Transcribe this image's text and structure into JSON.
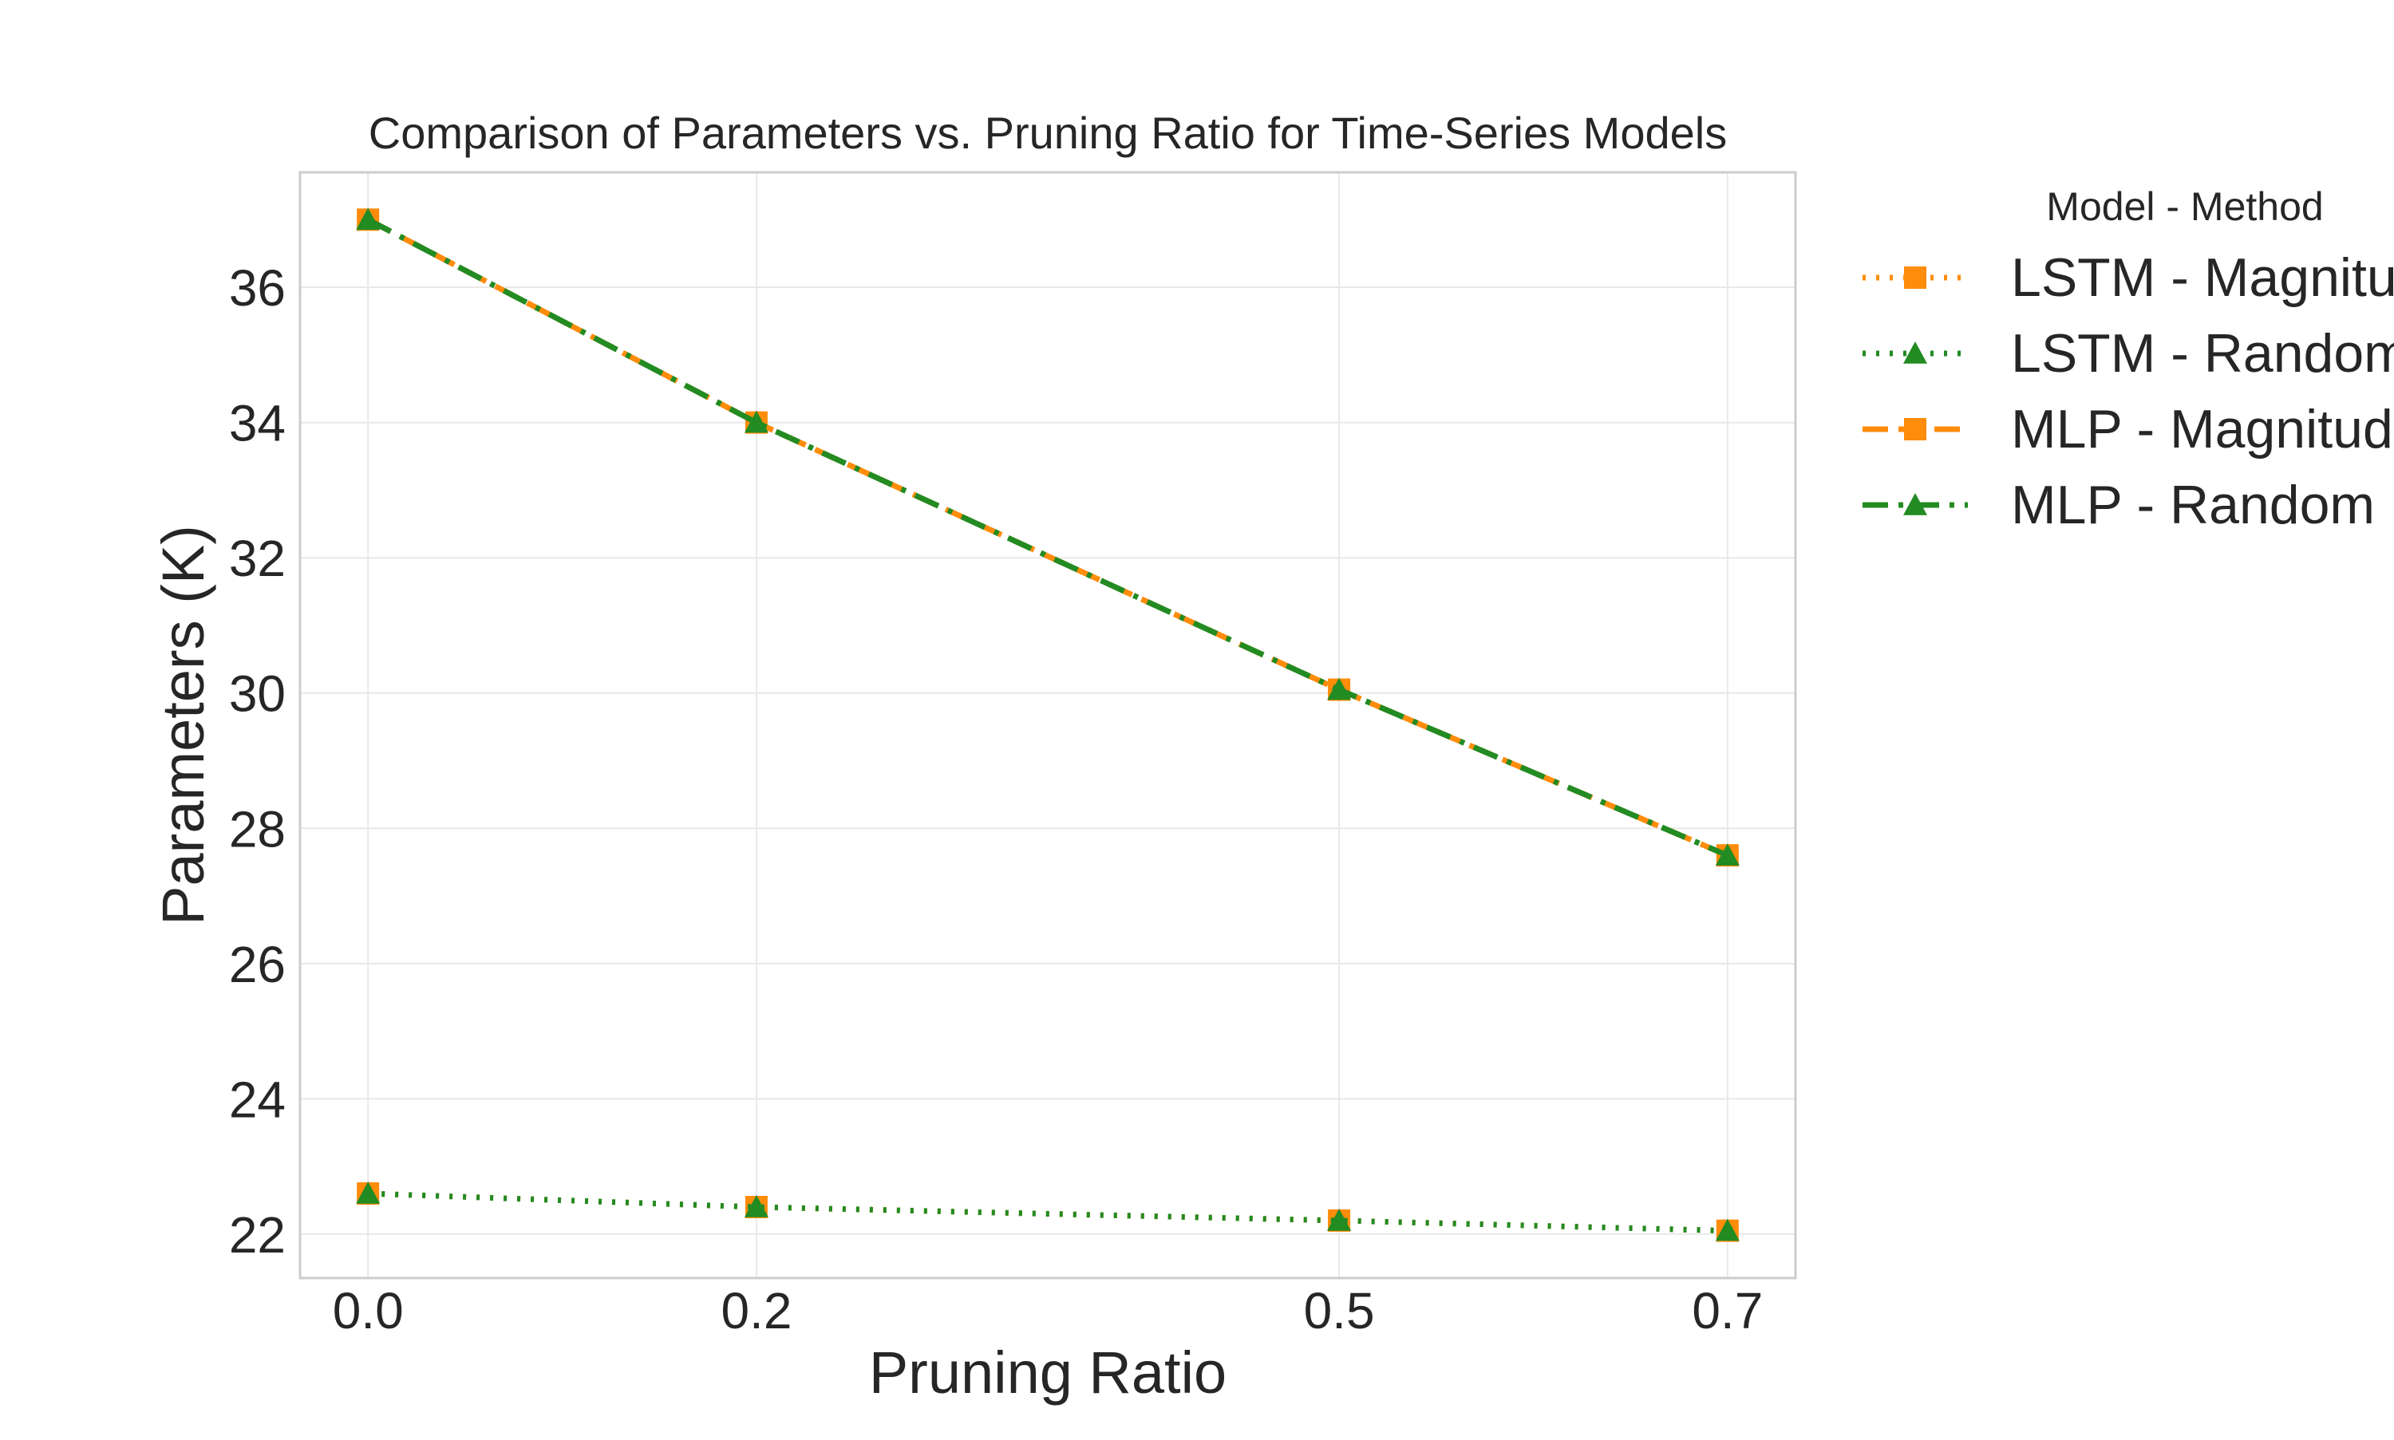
{
  "chart_data": {
    "type": "line",
    "title": "Comparison of Parameters vs. Pruning Ratio for Time-Series Models",
    "xlabel": "Pruning Ratio",
    "ylabel": "Parameters (K)",
    "x": [
      0.0,
      0.2,
      0.5,
      0.7
    ],
    "x_tick_labels": [
      "0.0",
      "0.2",
      "0.5",
      "0.7"
    ],
    "y_ticks": [
      22,
      24,
      26,
      28,
      30,
      32,
      34,
      36
    ],
    "y_tick_labels": [
      "22",
      "24",
      "26",
      "28",
      "30",
      "32",
      "34",
      "36"
    ],
    "xlim": [
      -0.035,
      0.735
    ],
    "ylim": [
      21.35,
      37.7
    ],
    "grid": true,
    "legend_title": "Model - Method",
    "legend_position": "outside right, top",
    "series": [
      {
        "name": "LSTM - Magnitude",
        "values": [
          22.6,
          22.4,
          22.2,
          22.05
        ],
        "color": "#ff8c0a",
        "line_style": "dotted",
        "marker": "square"
      },
      {
        "name": "LSTM - Random",
        "values": [
          22.6,
          22.4,
          22.2,
          22.05
        ],
        "color": "#228b22",
        "line_style": "dotted",
        "marker": "triangle"
      },
      {
        "name": "MLP - Magnitude",
        "values": [
          37.0,
          34.0,
          30.05,
          27.6
        ],
        "color": "#ff8c0a",
        "line_style": "dashed",
        "marker": "square"
      },
      {
        "name": "MLP - Random",
        "values": [
          37.0,
          34.0,
          30.05,
          27.6
        ],
        "color": "#228b22",
        "line_style": "dashdot",
        "marker": "triangle"
      }
    ]
  }
}
